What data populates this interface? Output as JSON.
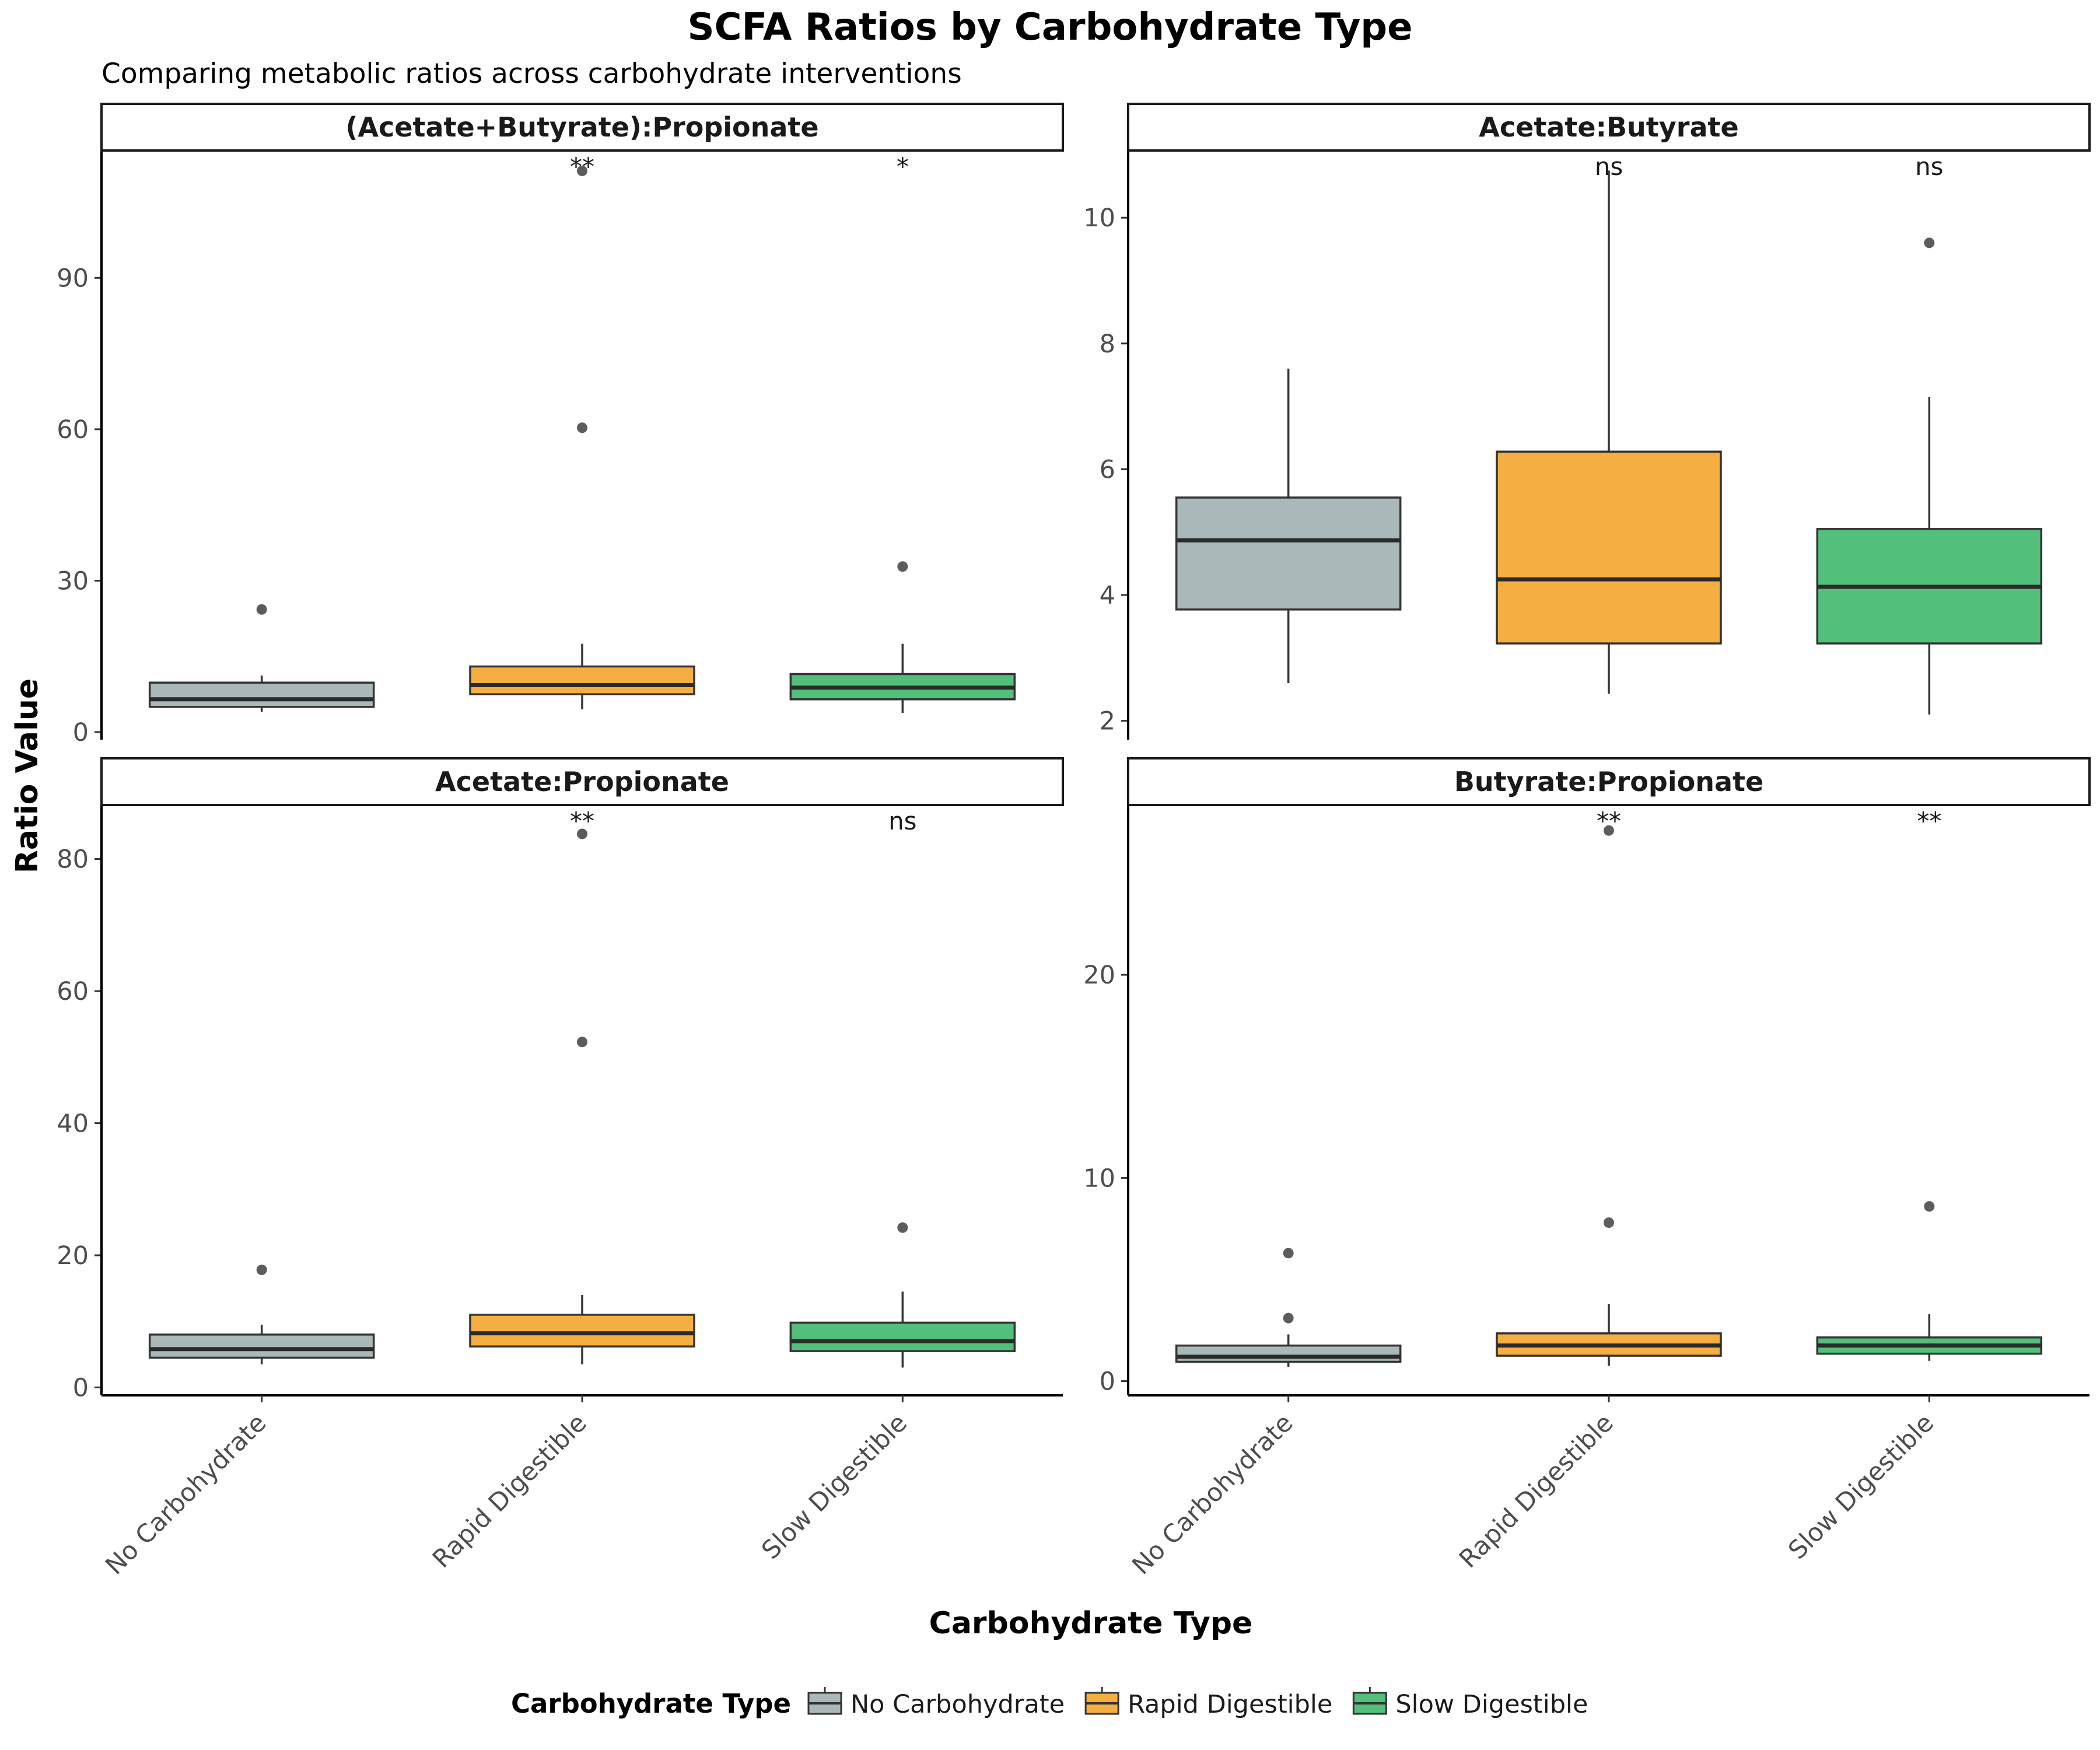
{
  "chart_data": {
    "type": "box",
    "title": "SCFA Ratios by Carbohydrate Type",
    "subtitle": "Comparing metabolic ratios across carbohydrate interventions",
    "xlabel": "Carbohydrate Type",
    "ylabel": "Ratio Value",
    "categories": [
      "No Carbohydrate",
      "Rapid Digestible",
      "Slow Digestible"
    ],
    "legend": {
      "title": "Carbohydrate Type",
      "position": "bottom",
      "entries": [
        "No Carbohydrate",
        "Rapid Digestible",
        "Slow Digestible"
      ]
    },
    "colors": {
      "No Carbohydrate": "#a9b8b8",
      "Rapid Digestible": "#f5ae41",
      "Slow Digestible": "#52c07b"
    },
    "panels": [
      {
        "name": "(Acetate+Butyrate):Propionate",
        "ylim": [
          -1.5,
          115
        ],
        "yticks": [
          0,
          30,
          60,
          90
        ],
        "boxes": [
          {
            "category": "No Carbohydrate",
            "whisker_low": 4.0,
            "q1": 5.0,
            "median": 6.5,
            "q3": 9.8,
            "whisker_high": 11.2,
            "outliers": [
              24.3
            ]
          },
          {
            "category": "Rapid Digestible",
            "whisker_low": 4.5,
            "q1": 7.5,
            "median": 9.3,
            "q3": 13.0,
            "whisker_high": 17.5,
            "outliers": [
              60.3,
              111.2
            ]
          },
          {
            "category": "Slow Digestible",
            "whisker_low": 3.8,
            "q1": 6.5,
            "median": 8.8,
            "q3": 11.5,
            "whisker_high": 17.5,
            "outliers": [
              32.8
            ]
          }
        ],
        "significance": [
          "",
          "**",
          "*"
        ]
      },
      {
        "name": "Acetate:Butyrate",
        "ylim": [
          1.7,
          11.05
        ],
        "yticks": [
          2,
          4,
          6,
          8,
          10
        ],
        "boxes": [
          {
            "category": "No Carbohydrate",
            "whisker_low": 2.6,
            "q1": 3.77,
            "median": 4.87,
            "q3": 5.55,
            "whisker_high": 7.6,
            "outliers": []
          },
          {
            "category": "Rapid Digestible",
            "whisker_low": 2.43,
            "q1": 3.23,
            "median": 4.25,
            "q3": 6.28,
            "whisker_high": 10.75,
            "outliers": []
          },
          {
            "category": "Slow Digestible",
            "whisker_low": 2.1,
            "q1": 3.23,
            "median": 4.13,
            "q3": 5.05,
            "whisker_high": 7.15,
            "outliers": [
              9.6
            ]
          }
        ],
        "significance": [
          "",
          "ns",
          "ns"
        ]
      },
      {
        "name": "Acetate:Propionate",
        "ylim": [
          -1.2,
          88.0
        ],
        "yticks": [
          0,
          20,
          40,
          60,
          80
        ],
        "boxes": [
          {
            "category": "No Carbohydrate",
            "whisker_low": 3.5,
            "q1": 4.5,
            "median": 5.8,
            "q3": 8.0,
            "whisker_high": 9.5,
            "outliers": [
              17.8
            ]
          },
          {
            "category": "Rapid Digestible",
            "whisker_low": 3.5,
            "q1": 6.2,
            "median": 8.2,
            "q3": 11.0,
            "whisker_high": 14.0,
            "outliers": [
              52.3,
              83.8
            ]
          },
          {
            "category": "Slow Digestible",
            "whisker_low": 3.0,
            "q1": 5.5,
            "median": 7.0,
            "q3": 9.8,
            "whisker_high": 14.5,
            "outliers": [
              24.2
            ]
          }
        ],
        "significance": [
          "",
          "**",
          "ns"
        ]
      },
      {
        "name": "Butyrate:Propionate",
        "ylim": [
          -0.7,
          28.3
        ],
        "yticks": [
          0,
          10,
          20
        ],
        "boxes": [
          {
            "category": "No Carbohydrate",
            "whisker_low": 0.7,
            "q1": 0.95,
            "median": 1.2,
            "q3": 1.75,
            "whisker_high": 2.3,
            "outliers": [
              3.1,
              6.3
            ]
          },
          {
            "category": "Rapid Digestible",
            "whisker_low": 0.75,
            "q1": 1.25,
            "median": 1.75,
            "q3": 2.35,
            "whisker_high": 3.8,
            "outliers": [
              7.8,
              27.1
            ]
          },
          {
            "category": "Slow Digestible",
            "whisker_low": 1.0,
            "q1": 1.35,
            "median": 1.75,
            "q3": 2.15,
            "whisker_high": 3.3,
            "outliers": [
              8.6
            ]
          }
        ],
        "significance": [
          "",
          "**",
          "**"
        ]
      }
    ]
  }
}
